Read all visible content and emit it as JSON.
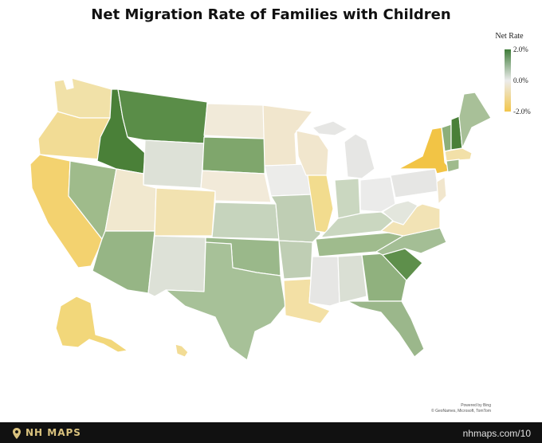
{
  "title": "Net Migration Rate of Families with Children",
  "legend": {
    "title": "Net Rate",
    "max_label": "2.0%",
    "mid_label": "0.0%",
    "min_label": "-2.0%",
    "colors": {
      "positive": "#3f7d39",
      "neutral": "#ececec",
      "negative": "#f2c64b"
    }
  },
  "states": [
    {
      "name": "Washington",
      "color": "#f1e1a8"
    },
    {
      "name": "Oregon",
      "color": "#f2dc95"
    },
    {
      "name": "California",
      "color": "#f3d26f"
    },
    {
      "name": "Nevada",
      "color": "#9fbb8b"
    },
    {
      "name": "Idaho",
      "color": "#4a8038"
    },
    {
      "name": "Montana",
      "color": "#5a8d48"
    },
    {
      "name": "Wyoming",
      "color": "#dde1d7"
    },
    {
      "name": "Utah",
      "color": "#f1e8cf"
    },
    {
      "name": "Arizona",
      "color": "#96b585"
    },
    {
      "name": "Colorado",
      "color": "#f2e2b0"
    },
    {
      "name": "New Mexico",
      "color": "#dde1d7"
    },
    {
      "name": "North Dakota",
      "color": "#f1ead9"
    },
    {
      "name": "South Dakota",
      "color": "#7fa66c"
    },
    {
      "name": "Nebraska",
      "color": "#f2ead9"
    },
    {
      "name": "Kansas",
      "color": "#c6d4bd"
    },
    {
      "name": "Oklahoma",
      "color": "#9ab88a"
    },
    {
      "name": "Texas",
      "color": "#a7c198"
    },
    {
      "name": "Minnesota",
      "color": "#f1e6cd"
    },
    {
      "name": "Iowa",
      "color": "#ececea"
    },
    {
      "name": "Missouri",
      "color": "#bfceb4"
    },
    {
      "name": "Arkansas",
      "color": "#bfceb4"
    },
    {
      "name": "Louisiana",
      "color": "#f3e0a5"
    },
    {
      "name": "Wisconsin",
      "color": "#f1e6cd"
    },
    {
      "name": "Illinois",
      "color": "#f2dc8e"
    },
    {
      "name": "Michigan",
      "color": "#e6e6e4"
    },
    {
      "name": "Indiana",
      "color": "#cad7c0"
    },
    {
      "name": "Ohio",
      "color": "#ebebea"
    },
    {
      "name": "Kentucky",
      "color": "#cad7c0"
    },
    {
      "name": "Tennessee",
      "color": "#9fbb8d"
    },
    {
      "name": "Mississippi",
      "color": "#e6e6e4"
    },
    {
      "name": "Alabama",
      "color": "#dadfd4"
    },
    {
      "name": "Georgia",
      "color": "#90b17e"
    },
    {
      "name": "Florida",
      "color": "#9bb78b"
    },
    {
      "name": "South Carolina",
      "color": "#5e8f4b"
    },
    {
      "name": "North Carolina",
      "color": "#a4be95"
    },
    {
      "name": "Virginia",
      "color": "#f2e3b5"
    },
    {
      "name": "West Virginia",
      "color": "#e3e6dd"
    },
    {
      "name": "Pennsylvania",
      "color": "#e6e6e4"
    },
    {
      "name": "New York",
      "color": "#f2c445"
    },
    {
      "name": "Vermont",
      "color": "#8caf7a"
    },
    {
      "name": "New Hampshire",
      "color": "#4a8038"
    },
    {
      "name": "Maine",
      "color": "#a8c098"
    },
    {
      "name": "Massachusetts",
      "color": "#f2e0a8"
    },
    {
      "name": "Connecticut",
      "color": "#9fbb8d"
    },
    {
      "name": "New Jersey",
      "color": "#f1e6cd"
    },
    {
      "name": "Alaska",
      "color": "#f2d77a"
    },
    {
      "name": "Hawaii",
      "color": "#f2dc95"
    }
  ],
  "credit": {
    "line1": "Powered by Bing",
    "line2": "© GeoNames, Microsoft, TomTom"
  },
  "footer": {
    "brand": "NH MAPS",
    "url": "nhmaps.com/10",
    "pin_color": "#d9c27e"
  }
}
